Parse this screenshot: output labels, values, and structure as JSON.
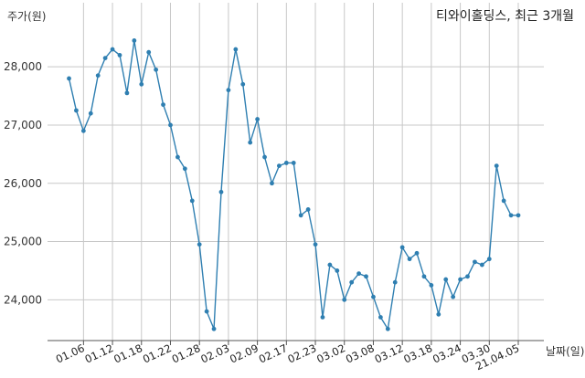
{
  "chart_data": {
    "type": "line",
    "title": "티와이홀딩스, 최근 3개월",
    "ylabel": "주가(원)",
    "xlabel": "날짜(일)",
    "ylim": [
      23300,
      28700
    ],
    "yticks": [
      24000,
      25000,
      26000,
      27000,
      28000
    ],
    "ytick_labels": [
      "24,000",
      "25,000",
      "26,000",
      "27,000",
      "28,000"
    ],
    "grid": true,
    "line_color": "#2f7fb1",
    "tick_labels": [
      "01.06",
      "01.12",
      "01.18",
      "01.22",
      "01.28",
      "02.03",
      "02.09",
      "02.17",
      "02.23",
      "03.02",
      "03.08",
      "03.12",
      "03.18",
      "03.24",
      "03.30",
      "21.04.05"
    ],
    "tick_index": [
      2,
      6,
      10,
      14,
      18,
      22,
      26,
      30,
      34,
      38,
      42,
      46,
      50,
      54,
      58,
      62
    ],
    "series": [
      {
        "values": [
          27800,
          27250,
          26900,
          27200,
          27850,
          28150,
          28300,
          28200,
          27550,
          28450,
          27700,
          28250,
          27950,
          27350,
          27000,
          26450,
          26250,
          25700,
          24950,
          23800,
          23500,
          25850,
          27600,
          28300,
          27700,
          26700,
          27100,
          26450,
          26000,
          26300,
          26350,
          26350,
          25450,
          25550,
          24950,
          23700,
          24600,
          24500,
          24000,
          24300,
          24450,
          24400,
          24050,
          23700,
          23500,
          24300,
          24900,
          24700,
          24800,
          24400,
          24250,
          23750,
          24350,
          24050,
          24350,
          24400,
          24650,
          24600,
          24700,
          26300,
          25700,
          25450,
          25450
        ]
      }
    ]
  }
}
